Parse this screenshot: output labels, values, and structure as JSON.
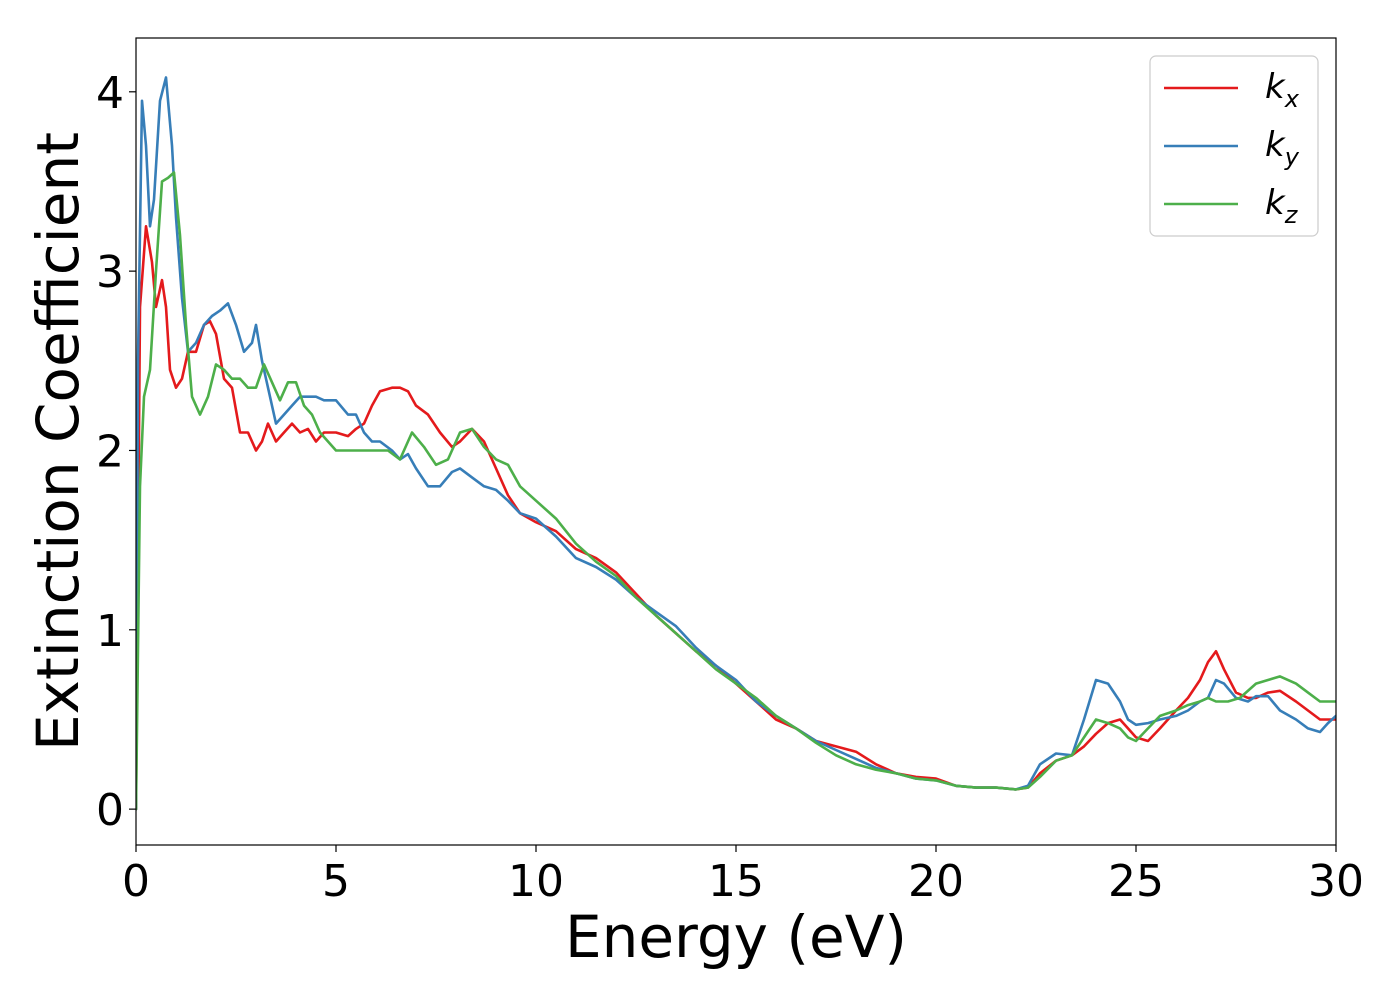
{
  "chart_data": {
    "type": "line",
    "title": "",
    "xlabel": "Energy (eV)",
    "ylabel": "Extinction Coefficient",
    "xlim": [
      0,
      30
    ],
    "ylim": [
      -0.2,
      4.3
    ],
    "xticks": [
      0,
      5,
      10,
      15,
      20,
      25,
      30
    ],
    "yticks": [
      0,
      1,
      2,
      3,
      4
    ],
    "grid": false,
    "legend_position": "top-right",
    "series": [
      {
        "name": "k",
        "subscript": "x",
        "color": "#e41a1c",
        "x": [
          0,
          0.1,
          0.25,
          0.4,
          0.5,
          0.65,
          0.75,
          0.85,
          1.0,
          1.15,
          1.3,
          1.5,
          1.7,
          1.85,
          2.0,
          2.2,
          2.4,
          2.6,
          2.8,
          3.0,
          3.15,
          3.3,
          3.5,
          3.7,
          3.9,
          4.1,
          4.3,
          4.5,
          4.7,
          5.0,
          5.3,
          5.5,
          5.7,
          5.9,
          6.1,
          6.4,
          6.6,
          6.8,
          7.0,
          7.3,
          7.6,
          7.9,
          8.1,
          8.4,
          8.7,
          9.0,
          9.3,
          9.6,
          10.0,
          10.5,
          11.0,
          11.5,
          12.0,
          12.5,
          13.0,
          13.5,
          14.0,
          14.5,
          15.0,
          15.5,
          16.0,
          16.5,
          17.0,
          17.5,
          18.0,
          18.5,
          19.0,
          19.5,
          20.0,
          20.5,
          21.0,
          21.5,
          22.0,
          22.3,
          22.6,
          23.0,
          23.4,
          23.7,
          24.0,
          24.3,
          24.6,
          24.8,
          25.0,
          25.3,
          25.6,
          26.0,
          26.3,
          26.6,
          26.8,
          27.0,
          27.2,
          27.5,
          27.8,
          28.0,
          28.3,
          28.6,
          29.0,
          29.3,
          29.6,
          30.0
        ],
        "y": [
          0,
          2.8,
          3.25,
          3.05,
          2.8,
          2.95,
          2.8,
          2.45,
          2.35,
          2.4,
          2.55,
          2.55,
          2.7,
          2.72,
          2.65,
          2.4,
          2.35,
          2.1,
          2.1,
          2.0,
          2.05,
          2.15,
          2.05,
          2.1,
          2.15,
          2.1,
          2.12,
          2.05,
          2.1,
          2.1,
          2.08,
          2.12,
          2.15,
          2.25,
          2.33,
          2.35,
          2.35,
          2.33,
          2.25,
          2.2,
          2.1,
          2.02,
          2.05,
          2.12,
          2.05,
          1.9,
          1.75,
          1.65,
          1.6,
          1.55,
          1.45,
          1.4,
          1.32,
          1.2,
          1.08,
          0.98,
          0.88,
          0.8,
          0.7,
          0.6,
          0.5,
          0.45,
          0.38,
          0.35,
          0.32,
          0.25,
          0.2,
          0.18,
          0.17,
          0.13,
          0.12,
          0.12,
          0.11,
          0.12,
          0.2,
          0.27,
          0.3,
          0.35,
          0.42,
          0.48,
          0.5,
          0.45,
          0.4,
          0.38,
          0.45,
          0.55,
          0.62,
          0.72,
          0.82,
          0.88,
          0.78,
          0.65,
          0.62,
          0.62,
          0.65,
          0.66,
          0.6,
          0.55,
          0.5,
          0.5
        ]
      },
      {
        "name": "k",
        "subscript": "y",
        "color": "#377eb8",
        "x": [
          0,
          0.05,
          0.15,
          0.25,
          0.35,
          0.45,
          0.6,
          0.75,
          0.9,
          1.0,
          1.15,
          1.3,
          1.5,
          1.7,
          1.9,
          2.1,
          2.3,
          2.5,
          2.7,
          2.9,
          3.0,
          3.15,
          3.3,
          3.5,
          3.7,
          3.9,
          4.1,
          4.3,
          4.5,
          4.7,
          5.0,
          5.3,
          5.5,
          5.7,
          5.9,
          6.1,
          6.4,
          6.6,
          6.8,
          7.0,
          7.3,
          7.6,
          7.9,
          8.1,
          8.4,
          8.7,
          9.0,
          9.3,
          9.6,
          10.0,
          10.5,
          11.0,
          11.5,
          12.0,
          12.5,
          13.0,
          13.5,
          14.0,
          14.5,
          15.0,
          15.5,
          16.0,
          16.5,
          17.0,
          17.5,
          18.0,
          18.5,
          19.0,
          19.5,
          20.0,
          20.5,
          21.0,
          21.5,
          22.0,
          22.3,
          22.6,
          23.0,
          23.4,
          23.7,
          24.0,
          24.3,
          24.6,
          24.8,
          25.0,
          25.3,
          25.6,
          26.0,
          26.3,
          26.6,
          26.8,
          27.0,
          27.2,
          27.5,
          27.8,
          28.0,
          28.3,
          28.6,
          29.0,
          29.3,
          29.6,
          29.8,
          30.0
        ],
        "y": [
          0,
          2.5,
          3.95,
          3.7,
          3.25,
          3.4,
          3.95,
          4.08,
          3.7,
          3.3,
          2.85,
          2.55,
          2.6,
          2.7,
          2.75,
          2.78,
          2.82,
          2.7,
          2.55,
          2.6,
          2.7,
          2.5,
          2.35,
          2.15,
          2.2,
          2.25,
          2.3,
          2.3,
          2.3,
          2.28,
          2.28,
          2.2,
          2.2,
          2.1,
          2.05,
          2.05,
          2.0,
          1.95,
          1.98,
          1.9,
          1.8,
          1.8,
          1.88,
          1.9,
          1.85,
          1.8,
          1.78,
          1.72,
          1.65,
          1.62,
          1.52,
          1.4,
          1.35,
          1.28,
          1.18,
          1.1,
          1.02,
          0.9,
          0.8,
          0.72,
          0.6,
          0.52,
          0.45,
          0.38,
          0.33,
          0.28,
          0.23,
          0.2,
          0.17,
          0.16,
          0.13,
          0.12,
          0.12,
          0.11,
          0.13,
          0.25,
          0.31,
          0.3,
          0.5,
          0.72,
          0.7,
          0.6,
          0.5,
          0.47,
          0.48,
          0.5,
          0.52,
          0.55,
          0.6,
          0.62,
          0.72,
          0.7,
          0.62,
          0.6,
          0.63,
          0.63,
          0.55,
          0.5,
          0.45,
          0.43,
          0.48,
          0.52
        ]
      },
      {
        "name": "k",
        "subscript": "z",
        "color": "#4daf4a",
        "x": [
          0,
          0.1,
          0.2,
          0.35,
          0.5,
          0.65,
          0.8,
          0.95,
          1.1,
          1.25,
          1.4,
          1.6,
          1.8,
          2.0,
          2.2,
          2.4,
          2.6,
          2.8,
          3.0,
          3.2,
          3.4,
          3.6,
          3.8,
          4.0,
          4.2,
          4.4,
          4.6,
          4.8,
          5.0,
          5.3,
          5.6,
          6.0,
          6.3,
          6.6,
          6.9,
          7.2,
          7.5,
          7.8,
          8.1,
          8.4,
          8.7,
          9.0,
          9.3,
          9.6,
          10.0,
          10.5,
          11.0,
          11.5,
          12.0,
          12.5,
          13.0,
          13.5,
          14.0,
          14.5,
          15.0,
          15.5,
          16.0,
          16.5,
          17.0,
          17.5,
          18.0,
          18.5,
          19.0,
          19.5,
          20.0,
          20.5,
          21.0,
          21.5,
          22.0,
          22.3,
          22.6,
          23.0,
          23.4,
          23.7,
          24.0,
          24.3,
          24.6,
          24.8,
          25.0,
          25.3,
          25.6,
          26.0,
          26.3,
          26.6,
          26.8,
          27.0,
          27.3,
          27.6,
          28.0,
          28.3,
          28.6,
          29.0,
          29.3,
          29.6,
          30.0
        ],
        "y": [
          0,
          1.8,
          2.3,
          2.45,
          3.0,
          3.5,
          3.52,
          3.55,
          3.2,
          2.7,
          2.3,
          2.2,
          2.3,
          2.48,
          2.45,
          2.4,
          2.4,
          2.35,
          2.35,
          2.48,
          2.38,
          2.28,
          2.38,
          2.38,
          2.25,
          2.2,
          2.1,
          2.05,
          2.0,
          2.0,
          2.0,
          2.0,
          2.0,
          1.95,
          2.1,
          2.02,
          1.92,
          1.95,
          2.1,
          2.12,
          2.02,
          1.95,
          1.92,
          1.8,
          1.72,
          1.62,
          1.48,
          1.38,
          1.3,
          1.18,
          1.08,
          0.98,
          0.88,
          0.78,
          0.7,
          0.62,
          0.52,
          0.45,
          0.37,
          0.3,
          0.25,
          0.22,
          0.2,
          0.17,
          0.16,
          0.13,
          0.12,
          0.12,
          0.11,
          0.12,
          0.18,
          0.27,
          0.3,
          0.4,
          0.5,
          0.48,
          0.45,
          0.4,
          0.38,
          0.45,
          0.52,
          0.55,
          0.58,
          0.6,
          0.62,
          0.6,
          0.6,
          0.62,
          0.7,
          0.72,
          0.74,
          0.7,
          0.65,
          0.6,
          0.6
        ]
      }
    ]
  }
}
